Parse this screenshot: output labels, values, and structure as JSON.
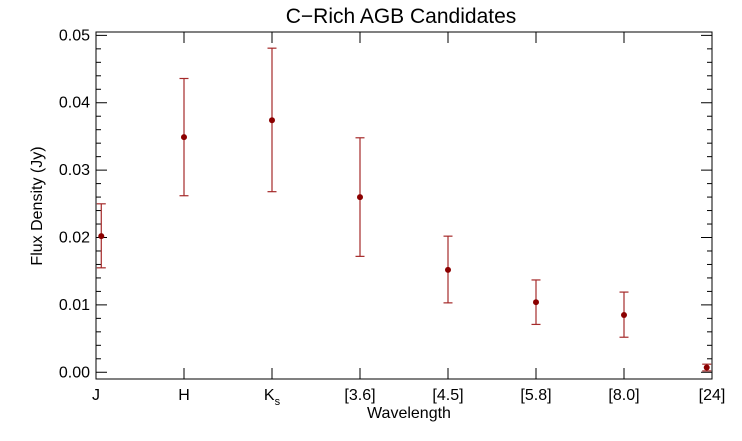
{
  "chart_data": {
    "type": "scatter",
    "title": "C−Rich AGB Candidates",
    "xlabel": "Wavelength",
    "ylabel": "Flux Density (Jy)",
    "categories": [
      "J",
      "H",
      "K_s",
      "[3.6]",
      "[4.5]",
      "[5.8]",
      "[8.0]",
      "[24]"
    ],
    "category_labels": [
      {
        "main": "J",
        "sub": ""
      },
      {
        "main": "H",
        "sub": ""
      },
      {
        "main": "K",
        "sub": "s"
      },
      {
        "main": "[3.6]",
        "sub": ""
      },
      {
        "main": "[4.5]",
        "sub": ""
      },
      {
        "main": "[5.8]",
        "sub": ""
      },
      {
        "main": "[8.0]",
        "sub": ""
      },
      {
        "main": "[24]",
        "sub": ""
      }
    ],
    "x_positions": [
      0.06,
      1,
      2,
      3,
      4,
      5,
      6,
      6.94
    ],
    "xlim": [
      0,
      7
    ],
    "values": [
      0.0202,
      0.0349,
      0.0374,
      0.026,
      0.0152,
      0.0104,
      0.0085,
      0.0007
    ],
    "error_low": [
      0.0155,
      0.0262,
      0.0268,
      0.0172,
      0.0103,
      0.0071,
      0.0052,
      0.0002
    ],
    "error_high": [
      0.025,
      0.0436,
      0.0481,
      0.0348,
      0.0202,
      0.0137,
      0.0119,
      0.0012
    ],
    "ylim": [
      -0.001,
      0.0505
    ],
    "yticks": [
      0.0,
      0.01,
      0.02,
      0.03,
      0.04,
      0.05
    ],
    "ytick_labels": [
      "0.00",
      "0.01",
      "0.02",
      "0.03",
      "0.04",
      "0.05"
    ],
    "marker_color": "#8b0000",
    "errorbar_color": "#a52a2a",
    "grid": false,
    "legend": "none"
  }
}
